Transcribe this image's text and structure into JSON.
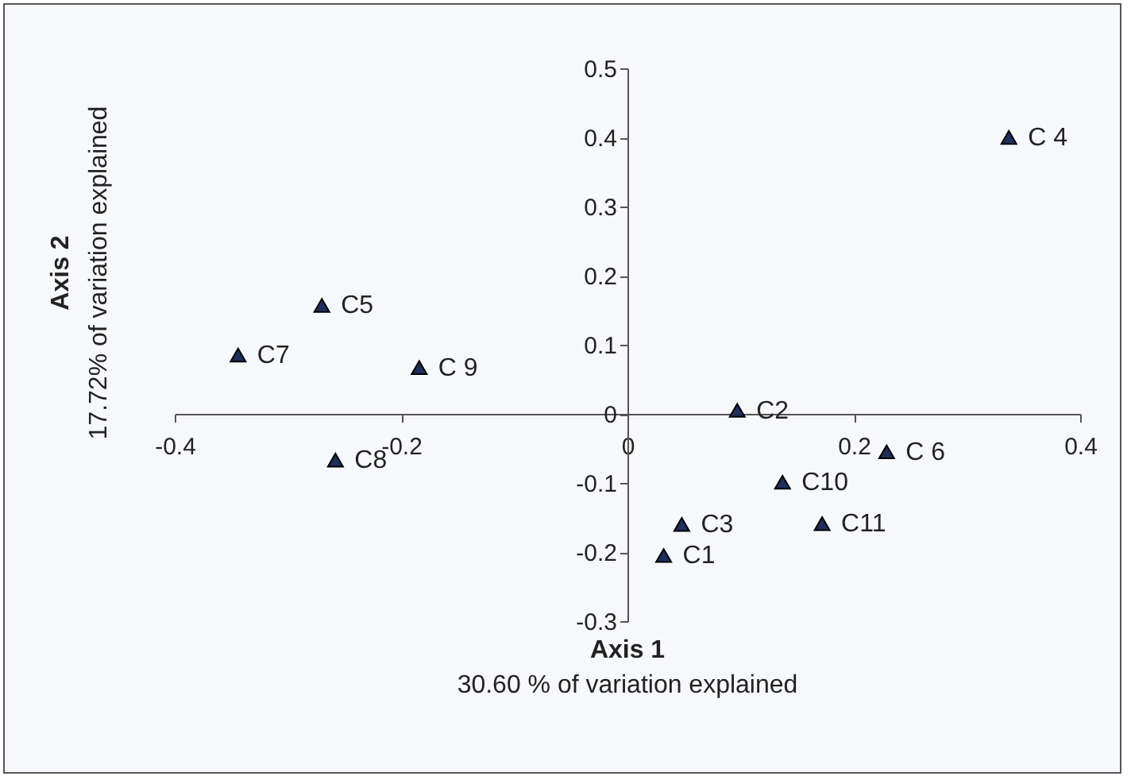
{
  "chart_data": {
    "type": "scatter",
    "xlabel": "Axis 1",
    "ylabel": "Axis 2",
    "annotations": [
      "30.60 % of variation explained",
      "17.72% of variation explained"
    ],
    "x": [
      0.032,
      0.097,
      0.048,
      0.337,
      -0.27,
      0.229,
      -0.344,
      -0.258,
      -0.184,
      0.137,
      0.172
    ],
    "values": [
      -0.205,
      0.005,
      -0.16,
      0.4,
      0.157,
      -0.055,
      0.085,
      -0.067,
      0.067,
      -0.099,
      -0.159
    ],
    "value_labels": [
      "C1",
      "C2",
      "C3",
      "C 4",
      "C5",
      "C 6",
      "C7",
      "C8",
      "C 9",
      "C10",
      "C11"
    ],
    "color": "#1f2f5c",
    "marker": "triangle",
    "xlim": [
      -0.4,
      0.4
    ],
    "ylim": [
      -0.3,
      0.5
    ],
    "xticks": [
      -0.4,
      -0.2,
      0,
      0.2,
      0.4
    ],
    "yticks": [
      -0.3,
      -0.2,
      -0.1,
      0,
      0.1,
      0.2,
      0.3,
      0.4,
      0.5
    ],
    "grid": false
  }
}
